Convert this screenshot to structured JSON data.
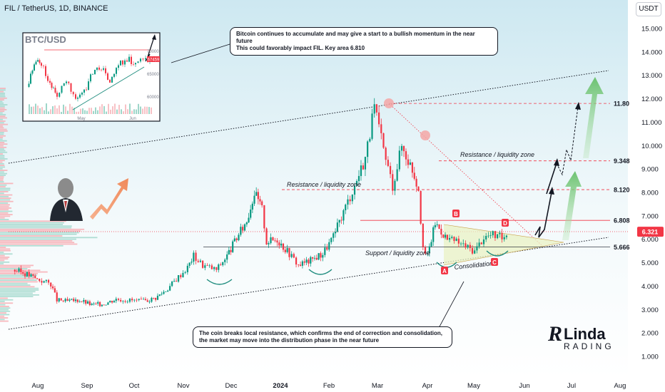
{
  "header": {
    "title": "FIL / TetherUS, 1D, BINANCE",
    "currency_button": "USDT"
  },
  "callouts": {
    "top": "Bitcoin continues to accumulate and may give a start to a bullish momentum in the near future\nThis could favorably impact FIL. Key area 6.810",
    "bottom": "The coin breaks local resistance, which confirms the end of correction and consolidation,\nthe market may move into the distribution phase in the near future"
  },
  "inset": {
    "title": "BTC/USD",
    "x_labels": [
      "May",
      "Jun"
    ],
    "y_labels": [
      "70000",
      "65000",
      "60000"
    ],
    "price_tag": "67459"
  },
  "brand": {
    "line1": "RLinda",
    "line2": "TRADING"
  },
  "colors": {
    "background_gradient_top": "#cfe9f2",
    "up_candle": "#089981",
    "down_candle": "#f23645",
    "resistance_line": "#f23645",
    "support_line": "#131722",
    "projection_arrows": "#78c87a",
    "current_price_label": "#f23645"
  },
  "chart_data": {
    "type": "candlestick",
    "symbol": "FIL / TetherUS",
    "timeframe": "1D",
    "exchange": "BINANCE",
    "x_axis_labels": [
      "Aug",
      "Sep",
      "Oct",
      "Nov",
      "Dec",
      "2024",
      "Feb",
      "Mar",
      "Apr",
      "May",
      "Jun",
      "Jul",
      "Aug"
    ],
    "y_axis_labels": [
      "15.000",
      "14.000",
      "13.000",
      "12.000",
      "11.000",
      "10.000",
      "9.000",
      "8.000",
      "7.000",
      "6.000",
      "5.000",
      "4.000",
      "3.000",
      "2.000",
      "1.000"
    ],
    "y_range": [
      0.5,
      15.5
    ],
    "current_price": "6.321",
    "key_levels": [
      {
        "label": "11.80",
        "value": 11.8
      },
      {
        "label": "9.348",
        "value": 9.348
      },
      {
        "label": "8.120",
        "value": 8.12
      },
      {
        "label": "6.808",
        "value": 6.808
      },
      {
        "label": "5.666",
        "value": 5.666
      }
    ],
    "zone_labels": [
      "Resistance / liquidity zone",
      "Resistance / liquidity zone",
      "Support / liquidity zone",
      "Consolidation"
    ],
    "point_labels": [
      "A",
      "B",
      "C",
      "D"
    ],
    "price_path": [
      [
        "2023-07-20",
        4.7
      ],
      [
        "2023-07-28",
        4.55
      ],
      [
        "2023-08-05",
        4.3
      ],
      [
        "2023-08-14",
        4.1
      ],
      [
        "2023-08-18",
        3.4
      ],
      [
        "2023-08-25",
        3.35
      ],
      [
        "2023-09-02",
        3.4
      ],
      [
        "2023-09-10",
        3.2
      ],
      [
        "2023-09-18",
        3.25
      ],
      [
        "2023-09-26",
        3.45
      ],
      [
        "2023-10-05",
        3.4
      ],
      [
        "2023-10-14",
        3.35
      ],
      [
        "2023-10-22",
        3.5
      ],
      [
        "2023-10-30",
        3.9
      ],
      [
        "2023-11-06",
        4.4
      ],
      [
        "2023-11-12",
        4.8
      ],
      [
        "2023-11-16",
        5.3
      ],
      [
        "2023-11-22",
        4.9
      ],
      [
        "2023-12-01",
        4.7
      ],
      [
        "2023-12-08",
        5.3
      ],
      [
        "2023-12-13",
        5.9
      ],
      [
        "2023-12-21",
        6.8
      ],
      [
        "2023-12-26",
        8.0
      ],
      [
        "2023-12-31",
        7.3
      ],
      [
        "2024-01-03",
        5.9
      ],
      [
        "2024-01-10",
        6.0
      ],
      [
        "2024-01-18",
        5.4
      ],
      [
        "2024-01-24",
        4.9
      ],
      [
        "2024-02-01",
        5.1
      ],
      [
        "2024-02-09",
        5.4
      ],
      [
        "2024-02-16",
        6.1
      ],
      [
        "2024-02-24",
        7.4
      ],
      [
        "2024-03-01",
        8.3
      ],
      [
        "2024-03-08",
        9.5
      ],
      [
        "2024-03-14",
        11.6
      ],
      [
        "2024-03-20",
        9.8
      ],
      [
        "2024-03-26",
        8.3
      ],
      [
        "2024-04-01",
        10.0
      ],
      [
        "2024-04-08",
        9.0
      ],
      [
        "2024-04-12",
        8.2
      ],
      [
        "2024-04-15",
        5.5
      ],
      [
        "2024-04-18",
        5.3
      ],
      [
        "2024-04-23",
        6.7
      ],
      [
        "2024-05-01",
        6.0
      ],
      [
        "2024-05-07",
        5.9
      ],
      [
        "2024-05-13",
        5.7
      ],
      [
        "2024-05-19",
        5.5
      ],
      [
        "2024-05-25",
        6.1
      ],
      [
        "2024-05-31",
        6.2
      ],
      [
        "2024-06-06",
        6.05
      ],
      [
        "2024-06-09",
        6.32
      ]
    ],
    "projection_path": [
      [
        "2024-06-09",
        6.32
      ],
      [
        "2024-06-14",
        6.9
      ],
      [
        "2024-06-12",
        6.3
      ],
      [
        "2024-06-20",
        8.1
      ],
      [
        "2024-06-26",
        9.3
      ]
    ]
  }
}
